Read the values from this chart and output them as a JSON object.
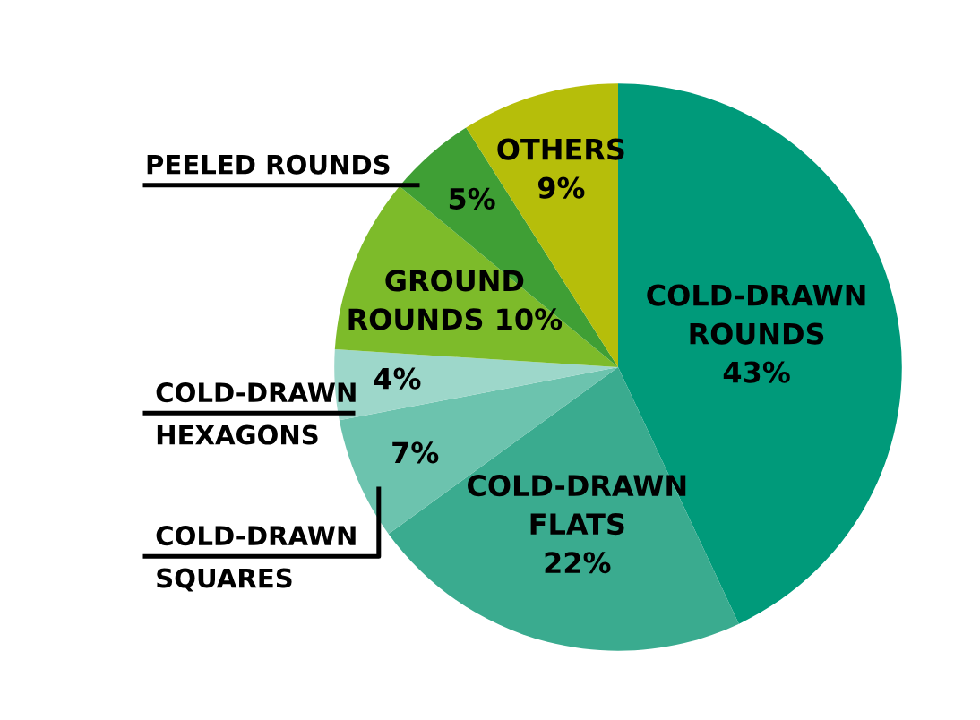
{
  "chart_data": {
    "type": "pie",
    "categories": [
      "COLD-DRAWN ROUNDS",
      "COLD-DRAWN FLATS",
      "COLD-DRAWN SQUARES",
      "COLD-DRAWN HEXAGONS",
      "GROUND ROUNDS",
      "PEELED ROUNDS",
      "OTHERS"
    ],
    "values": [
      43,
      22,
      7,
      4,
      10,
      5,
      9
    ],
    "colors": [
      "#009a7a",
      "#3aab8f",
      "#6cc3ae",
      "#9dd7ca",
      "#7dbb2a",
      "#3f9f35",
      "#b6be0a"
    ],
    "value_labels": [
      "43%",
      "22%",
      "7%",
      "4%",
      "10%",
      "5%",
      "9%"
    ],
    "legend": false
  }
}
